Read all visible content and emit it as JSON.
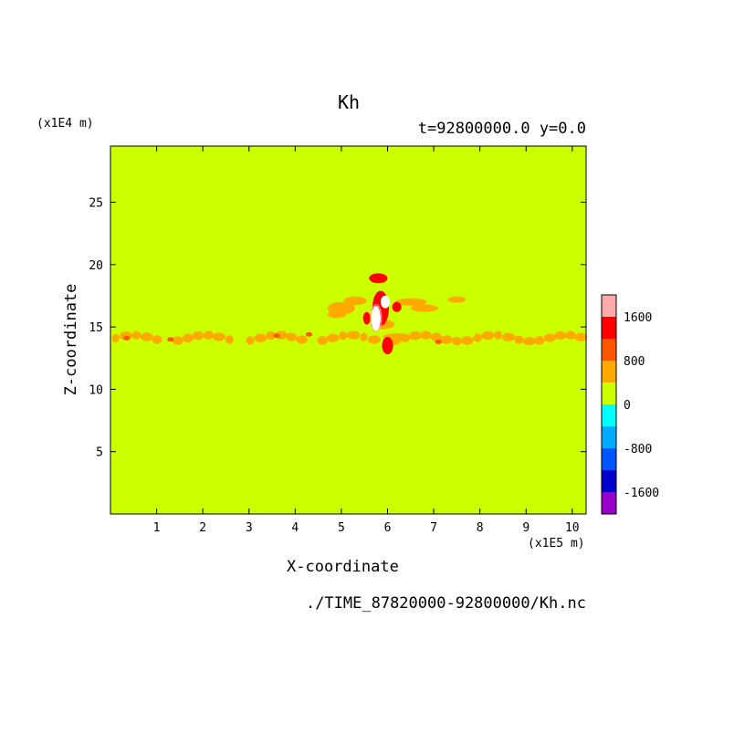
{
  "chart_data": {
    "type": "heatmap",
    "title": "Kh",
    "subtitle": "t=92800000.0 y=0.0",
    "xlabel": "X-coordinate",
    "ylabel": "Z-coordinate",
    "x_unit": "(x1E5 m)",
    "y_unit": "(x1E4 m)",
    "source": "./TIME_87820000-92800000/Kh.nc",
    "xlim": [
      0,
      10.3
    ],
    "ylim": [
      0,
      29.5
    ],
    "x_ticks": [
      1,
      2,
      3,
      4,
      5,
      6,
      7,
      8,
      9,
      10
    ],
    "y_ticks": [
      5,
      10,
      15,
      20,
      25
    ],
    "background_level": "0 to 400",
    "colorbar": {
      "levels": [
        -2000,
        -1600,
        -1200,
        -800,
        -400,
        0,
        400,
        800,
        1200,
        1600,
        2000
      ],
      "labels": [
        -1600,
        -800,
        0,
        800,
        1600
      ],
      "colors": [
        "#9900cc",
        "#0000cc",
        "#0055ff",
        "#00aaff",
        "#00ffff",
        "#ccff00",
        "#ffaa00",
        "#ff5500",
        "#ff0000",
        "#ffaaaa"
      ]
    },
    "features": [
      {
        "level": "400-800",
        "x": [
          0,
          10.3
        ],
        "z": [
          13.9,
          14.6
        ]
      },
      {
        "level": "400-800",
        "x": [
          4.7,
          7.2
        ],
        "z": [
          15.5,
          17.6
        ]
      },
      {
        "level": "800-1200",
        "x": [
          5.5,
          6.2
        ],
        "z": [
          12.8,
          19.3
        ]
      },
      {
        "level": ">1600",
        "x": [
          5.6,
          6.0
        ],
        "z": [
          15.0,
          17.3
        ]
      }
    ]
  },
  "colors": {
    "frame": "#000000",
    "background": "#ffffff"
  }
}
